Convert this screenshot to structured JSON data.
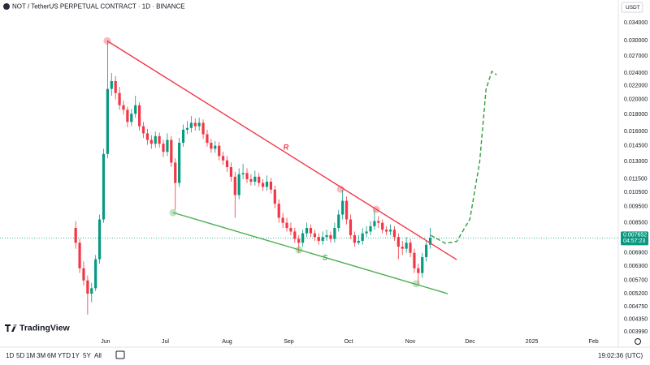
{
  "header": {
    "symbol_title": "NOT / TetherUS PERPETUAL CONTRACT · 1D · BINANCE",
    "currency": "USDT",
    "brand": "TradingView"
  },
  "toolbar": {
    "timeframes": [
      "1D",
      "5D",
      "1M",
      "3M",
      "6M",
      "YTD",
      "1Y",
      "5Y",
      "All"
    ],
    "clock": "19:02:36 (UTC)"
  },
  "chart_data": {
    "type": "candlestick",
    "log_scale": true,
    "grid": false,
    "up_color": "#089981",
    "down_color": "#f23645",
    "xlim": [
      -22,
      288
    ],
    "xticks": [
      {
        "value": 31,
        "label": "Jun"
      },
      {
        "value": 61,
        "label": "Jul"
      },
      {
        "value": 92,
        "label": "Aug"
      },
      {
        "value": 123,
        "label": "Sep"
      },
      {
        "value": 153,
        "label": "Oct"
      },
      {
        "value": 184,
        "label": "Nov"
      },
      {
        "value": 214,
        "label": "Dec"
      },
      {
        "value": 245,
        "label": "2025"
      },
      {
        "value": 276,
        "label": "Feb"
      }
    ],
    "ylim": [
      0.00365,
      0.0366
    ],
    "yticks": [
      {
        "value": 0.034,
        "label": "0.034000"
      },
      {
        "value": 0.03,
        "label": "0.030000"
      },
      {
        "value": 0.027,
        "label": "0.027000"
      },
      {
        "value": 0.024,
        "label": "0.024000"
      },
      {
        "value": 0.022,
        "label": "0.022000"
      },
      {
        "value": 0.02,
        "label": "0.020000"
      },
      {
        "value": 0.018,
        "label": "0.018000"
      },
      {
        "value": 0.016,
        "label": "0.016000"
      },
      {
        "value": 0.0145,
        "label": "0.014500"
      },
      {
        "value": 0.013,
        "label": "0.013000"
      },
      {
        "value": 0.0115,
        "label": "0.011500"
      },
      {
        "value": 0.0105,
        "label": "0.010500"
      },
      {
        "value": 0.0095,
        "label": "0.009500"
      },
      {
        "value": 0.0085,
        "label": "0.008500"
      },
      {
        "value": 0.0069,
        "label": "0.006900"
      },
      {
        "value": 0.0063,
        "label": "0.006300"
      },
      {
        "value": 0.0057,
        "label": "0.005700"
      },
      {
        "value": 0.0052,
        "label": "0.005200"
      },
      {
        "value": 0.00475,
        "label": "0.004750"
      },
      {
        "value": 0.00435,
        "label": "0.004350"
      },
      {
        "value": 0.00399,
        "label": "0.003990"
      }
    ],
    "last_price": 0.007652,
    "last_price_color": "#089981",
    "countdown": "04:57:23",
    "x": [
      16,
      18,
      20,
      22,
      24,
      26,
      28,
      30,
      32,
      34,
      36,
      38,
      40,
      42,
      44,
      46,
      48,
      50,
      52,
      54,
      56,
      58,
      60,
      62,
      64,
      66,
      68,
      70,
      72,
      74,
      76,
      78,
      80,
      82,
      84,
      86,
      88,
      90,
      92,
      94,
      96,
      98,
      100,
      102,
      104,
      106,
      108,
      110,
      112,
      114,
      116,
      118,
      120,
      122,
      124,
      126,
      128,
      130,
      132,
      134,
      136,
      138,
      140,
      142,
      144,
      146,
      148,
      150,
      152,
      154,
      156,
      158,
      160,
      162,
      164,
      166,
      168,
      170,
      172,
      174,
      176,
      178,
      180,
      182,
      184,
      186,
      188,
      190,
      192,
      194
    ],
    "ohlc": [
      [
        0.0082,
        0.0086,
        0.0071,
        0.0074
      ],
      [
        0.0074,
        0.0076,
        0.006,
        0.0062
      ],
      [
        0.0062,
        0.0065,
        0.0055,
        0.0057
      ],
      [
        0.0057,
        0.0059,
        0.0045,
        0.0052
      ],
      [
        0.0052,
        0.0056,
        0.0049,
        0.0054
      ],
      [
        0.0054,
        0.0068,
        0.0053,
        0.0066
      ],
      [
        0.0066,
        0.009,
        0.0064,
        0.0087
      ],
      [
        0.0087,
        0.0142,
        0.0085,
        0.0137
      ],
      [
        0.0137,
        0.03,
        0.0133,
        0.0215
      ],
      [
        0.0215,
        0.024,
        0.0205,
        0.0227
      ],
      [
        0.0227,
        0.0235,
        0.02,
        0.0209
      ],
      [
        0.0209,
        0.0218,
        0.0186,
        0.0192
      ],
      [
        0.0192,
        0.0198,
        0.018,
        0.0186
      ],
      [
        0.0186,
        0.019,
        0.0165,
        0.0171
      ],
      [
        0.0171,
        0.0187,
        0.0166,
        0.0181
      ],
      [
        0.0181,
        0.0205,
        0.0176,
        0.0192
      ],
      [
        0.0192,
        0.0196,
        0.0161,
        0.0166
      ],
      [
        0.0166,
        0.0171,
        0.0153,
        0.0158
      ],
      [
        0.0158,
        0.0163,
        0.0146,
        0.0151
      ],
      [
        0.0151,
        0.0156,
        0.0142,
        0.0147
      ],
      [
        0.0147,
        0.016,
        0.0143,
        0.0155
      ],
      [
        0.0155,
        0.0159,
        0.0143,
        0.0147
      ],
      [
        0.0147,
        0.0151,
        0.0134,
        0.0139
      ],
      [
        0.0139,
        0.0158,
        0.0135,
        0.0151
      ],
      [
        0.0151,
        0.0155,
        0.0125,
        0.0129
      ],
      [
        0.0129,
        0.0133,
        0.0093,
        0.0112
      ],
      [
        0.0112,
        0.0153,
        0.0109,
        0.0148
      ],
      [
        0.0148,
        0.0168,
        0.0144,
        0.0162
      ],
      [
        0.0162,
        0.0172,
        0.0157,
        0.0164
      ],
      [
        0.0164,
        0.0178,
        0.0159,
        0.017
      ],
      [
        0.017,
        0.0175,
        0.0161,
        0.0166
      ],
      [
        0.0166,
        0.0176,
        0.0161,
        0.017
      ],
      [
        0.017,
        0.0174,
        0.0152,
        0.0157
      ],
      [
        0.0157,
        0.0162,
        0.0144,
        0.0148
      ],
      [
        0.0148,
        0.0152,
        0.0138,
        0.0142
      ],
      [
        0.0142,
        0.015,
        0.0138,
        0.0145
      ],
      [
        0.0145,
        0.0149,
        0.0131,
        0.0135
      ],
      [
        0.0135,
        0.0139,
        0.0127,
        0.0131
      ],
      [
        0.0131,
        0.0135,
        0.0121,
        0.0125
      ],
      [
        0.0125,
        0.0129,
        0.0113,
        0.0117
      ],
      [
        0.0117,
        0.0121,
        0.0088,
        0.0103
      ],
      [
        0.0103,
        0.0124,
        0.01,
        0.0119
      ],
      [
        0.0119,
        0.0128,
        0.0115,
        0.012
      ],
      [
        0.012,
        0.0124,
        0.0112,
        0.0115
      ],
      [
        0.0115,
        0.0119,
        0.011,
        0.0113
      ],
      [
        0.0113,
        0.0122,
        0.011,
        0.0117
      ],
      [
        0.0117,
        0.012,
        0.0109,
        0.0112
      ],
      [
        0.0112,
        0.0115,
        0.0106,
        0.0109
      ],
      [
        0.0109,
        0.0118,
        0.0106,
        0.0113
      ],
      [
        0.0113,
        0.0116,
        0.0104,
        0.0107
      ],
      [
        0.0107,
        0.011,
        0.0094,
        0.0097
      ],
      [
        0.0097,
        0.01,
        0.0085,
        0.0088
      ],
      [
        0.0088,
        0.0091,
        0.0082,
        0.0085
      ],
      [
        0.0085,
        0.0088,
        0.008,
        0.0082
      ],
      [
        0.0082,
        0.0085,
        0.0078,
        0.008
      ],
      [
        0.008,
        0.0082,
        0.0074,
        0.0076
      ],
      [
        0.0076,
        0.0078,
        0.0069,
        0.0074
      ],
      [
        0.0074,
        0.0081,
        0.0072,
        0.0079
      ],
      [
        0.0079,
        0.0085,
        0.0077,
        0.0082
      ],
      [
        0.0082,
        0.0084,
        0.0077,
        0.0079
      ],
      [
        0.0079,
        0.0081,
        0.0075,
        0.0077
      ],
      [
        0.0077,
        0.0079,
        0.0073,
        0.0075
      ],
      [
        0.0075,
        0.008,
        0.0073,
        0.0077
      ],
      [
        0.0077,
        0.0081,
        0.0075,
        0.0078
      ],
      [
        0.0078,
        0.008,
        0.0074,
        0.0076
      ],
      [
        0.0076,
        0.0085,
        0.0074,
        0.0082
      ],
      [
        0.0082,
        0.0093,
        0.008,
        0.009
      ],
      [
        0.009,
        0.0107,
        0.0087,
        0.0099
      ],
      [
        0.0099,
        0.0102,
        0.0084,
        0.0087
      ],
      [
        0.0087,
        0.009,
        0.0076,
        0.0078
      ],
      [
        0.0078,
        0.008,
        0.0072,
        0.0074
      ],
      [
        0.0074,
        0.0078,
        0.0073,
        0.0075
      ],
      [
        0.0075,
        0.0082,
        0.0073,
        0.0079
      ],
      [
        0.0079,
        0.0083,
        0.0077,
        0.008
      ],
      [
        0.008,
        0.0086,
        0.0078,
        0.0083
      ],
      [
        0.0083,
        0.0093,
        0.0081,
        0.0086
      ],
      [
        0.0086,
        0.0089,
        0.0082,
        0.0085
      ],
      [
        0.0085,
        0.0087,
        0.0079,
        0.0081
      ],
      [
        0.0081,
        0.0083,
        0.0078,
        0.008
      ],
      [
        0.008,
        0.0084,
        0.0078,
        0.0081
      ],
      [
        0.0081,
        0.0083,
        0.0075,
        0.0077
      ],
      [
        0.0077,
        0.0079,
        0.0066,
        0.0072
      ],
      [
        0.0072,
        0.0075,
        0.0068,
        0.0071
      ],
      [
        0.0071,
        0.0077,
        0.0069,
        0.0074
      ],
      [
        0.0074,
        0.0076,
        0.0067,
        0.0069
      ],
      [
        0.0069,
        0.0071,
        0.006,
        0.0062
      ],
      [
        0.0062,
        0.0064,
        0.0055,
        0.006
      ],
      [
        0.006,
        0.0069,
        0.0058,
        0.0067
      ],
      [
        0.0067,
        0.0075,
        0.0065,
        0.0073
      ],
      [
        0.0073,
        0.0082,
        0.0071,
        0.007652
      ]
    ],
    "trendlines": [
      {
        "label": "R",
        "color": "#f23645",
        "x": [
          31.8,
          207.3
        ],
        "y": [
          0.03,
          0.00658
        ],
        "touch_x": [
          31.8,
          149,
          166.9
        ],
        "touch_y": [
          0.03,
          0.01073,
          0.00933
        ]
      },
      {
        "label": "S",
        "color": "#4caf50",
        "x": [
          64.9,
          202.8
        ],
        "y": [
          0.00912,
          0.0052
        ],
        "touch_x": [
          64.9,
          128.1,
          186.9
        ],
        "touch_y": [
          0.00912,
          0.00704,
          0.00557
        ]
      }
    ],
    "projection": {
      "color": "#2e9e3e",
      "x": [
        194.3,
        201.6,
        207.3,
        213.9,
        218.8,
        222,
        224.9,
        227.3
      ],
      "y": [
        0.00779,
        0.00737,
        0.00747,
        0.00872,
        0.01295,
        0.02145,
        0.02428,
        0.0237
      ]
    }
  }
}
